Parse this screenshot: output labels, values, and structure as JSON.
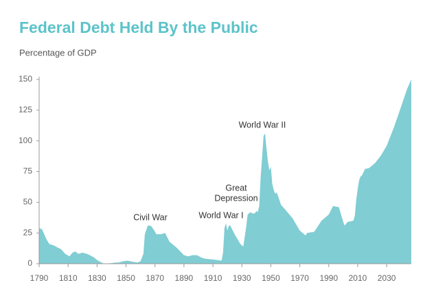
{
  "chart_data": {
    "type": "area",
    "title": "Federal Debt Held By the Public",
    "subtitle": "Percentage of GDP",
    "color": "#80cdd3",
    "title_color": "#5cc3ca",
    "xlim": [
      1790,
      2047
    ],
    "ylim": [
      0,
      150
    ],
    "xticks": [
      1790,
      1810,
      1830,
      1850,
      1870,
      1890,
      1910,
      1930,
      1950,
      1970,
      1990,
      2010,
      2030
    ],
    "yticks": [
      0,
      25,
      50,
      75,
      100,
      125,
      150
    ],
    "grid": false,
    "annotations": [
      [
        "Civil War"
      ],
      [
        "World War I"
      ],
      [
        "Great",
        "Depression"
      ],
      [
        "World War II"
      ]
    ],
    "x": [
      1790,
      1792,
      1795,
      1797,
      1800,
      1803,
      1805,
      1808,
      1811,
      1813,
      1815,
      1817,
      1820,
      1823,
      1825,
      1828,
      1830,
      1833,
      1835,
      1840,
      1843,
      1845,
      1848,
      1851,
      1855,
      1858,
      1860,
      1862,
      1863,
      1865,
      1867,
      1869,
      1871,
      1874,
      1877,
      1880,
      1885,
      1890,
      1893,
      1896,
      1899,
      1902,
      1905,
      1910,
      1916,
      1917,
      1918,
      1919,
      1920,
      1921,
      1922,
      1925,
      1929,
      1931,
      1932,
      1933,
      1934,
      1936,
      1937,
      1939,
      1940,
      1941,
      1942,
      1943,
      1944,
      1945,
      1946,
      1947,
      1948,
      1949,
      1950,
      1951,
      1952,
      1953,
      1954,
      1955,
      1957,
      1960,
      1965,
      1970,
      1974,
      1975,
      1980,
      1985,
      1990,
      1993,
      1997,
      2000,
      2001,
      2003,
      2007,
      2008,
      2009,
      2010,
      2011,
      2012,
      2013,
      2015,
      2018,
      2022,
      2026,
      2030,
      2035,
      2040,
      2044,
      2047
    ],
    "values": [
      29,
      28,
      20,
      16,
      15,
      13,
      12,
      8,
      6,
      9,
      10,
      8,
      9,
      8,
      7,
      5,
      3,
      1,
      0,
      0.5,
      1,
      1,
      2,
      2.5,
      1.5,
      1,
      2,
      8,
      24,
      31,
      31,
      28,
      24,
      24,
      25,
      18,
      13,
      7,
      6,
      7,
      7,
      5,
      4,
      3.5,
      2.5,
      9,
      29,
      33,
      27,
      31,
      31,
      24,
      16,
      14,
      22,
      30,
      40,
      42,
      41,
      41,
      43,
      42,
      47,
      71,
      87,
      104,
      106,
      94,
      83,
      76,
      79,
      65,
      60,
      57,
      58,
      55,
      48,
      44,
      37,
      27,
      23,
      25,
      26,
      35,
      40,
      47,
      46,
      34,
      31,
      34,
      35,
      39,
      52,
      61,
      68,
      71,
      72,
      77,
      78,
      82,
      88,
      96,
      111,
      128,
      142,
      150
    ]
  }
}
